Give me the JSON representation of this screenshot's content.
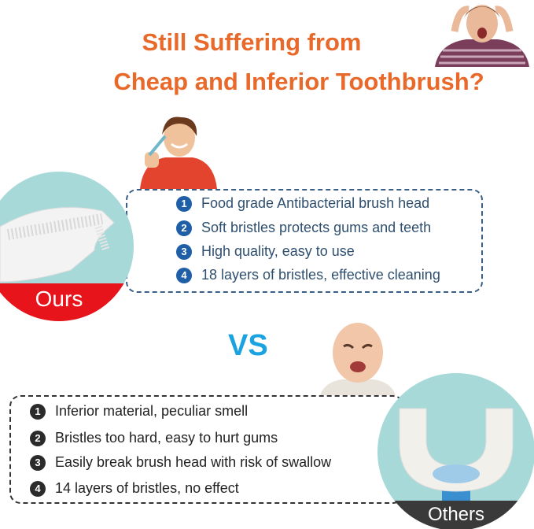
{
  "title": {
    "line1": "Still Suffering from",
    "line2": "Cheap and Inferior Toothbrush?"
  },
  "ours": {
    "label": "Ours",
    "items": [
      {
        "num": "1",
        "text": "Food grade Antibacterial brush head"
      },
      {
        "num": "2",
        "text": "Soft bristles protects gums and teeth"
      },
      {
        "num": "3",
        "text": "High quality, easy to use"
      },
      {
        "num": "4",
        "text": "18 layers of bristles, effective cleaning"
      }
    ]
  },
  "vs": "VS",
  "others": {
    "label": "Others",
    "items": [
      {
        "num": "1",
        "text": "Inferior material, peculiar smell"
      },
      {
        "num": "2",
        "text": "Bristles too hard, easy to hurt gums"
      },
      {
        "num": "3",
        "text": "Easily break brush head with risk of swallow"
      },
      {
        "num": "4",
        "text": "14 layers of bristles, no effect"
      }
    ]
  },
  "colors": {
    "title": "#e8692a",
    "vs": "#1aa3e0",
    "ours_band": "#e8141b",
    "others_band": "#3a3a3a",
    "ours_accent": "#1f5fa8"
  }
}
